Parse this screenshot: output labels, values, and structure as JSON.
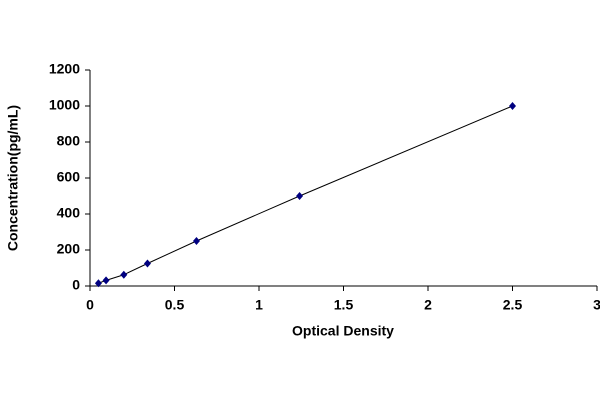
{
  "chart_data": {
    "type": "scatter",
    "x_label": "Optical Density",
    "y_label": "Concentration(pg/mL)",
    "x": [
      0.05,
      0.095,
      0.2,
      0.34,
      0.63,
      1.24,
      2.5
    ],
    "values": [
      15.6,
      31.25,
      62.5,
      125,
      250,
      500,
      1000
    ],
    "color": "#000080",
    "line_color": "#000000",
    "connect": true,
    "xlim": [
      0,
      3
    ],
    "xticks": [
      0,
      0.5,
      1,
      1.5,
      2,
      2.5,
      3
    ],
    "ylim": [
      0,
      1200
    ],
    "yticks": [
      0,
      200,
      400,
      600,
      800,
      1000,
      1200
    ],
    "grid": false
  }
}
